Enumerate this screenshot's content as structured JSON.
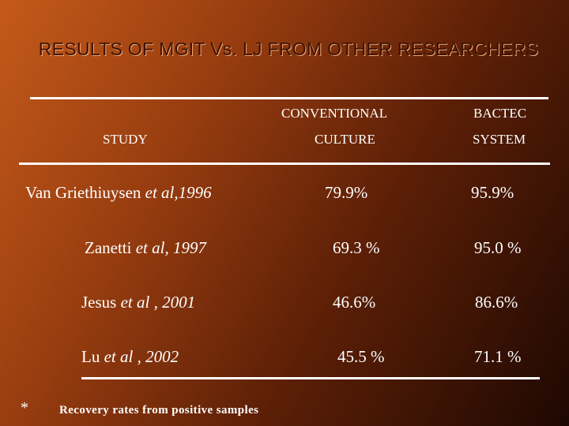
{
  "slide": {
    "title": "RESULTS OF MGIT Vs. LJ  FROM OTHER RESEARCHERS"
  },
  "table": {
    "headers": {
      "study": "STUDY",
      "conventional_line1": "CONVENTIONAL",
      "conventional_line2": "CULTURE",
      "bactec_line1": "BACTEC",
      "bactec_line2": "SYSTEM"
    },
    "rows": [
      {
        "author": "Van Griethiuysen ",
        "etal": "et al,",
        "year": "1996",
        "conventional": "79.9%",
        "bactec": "95.9%"
      },
      {
        "author": "Zanetti   ",
        "etal": "et al,",
        "year": " 1997",
        "conventional": "69.3 %",
        "bactec": "95.0 %"
      },
      {
        "author": "Jesus ",
        "etal": "et al ,",
        "year": " 2001",
        "conventional": "46.6%",
        "bactec": "86.6%"
      },
      {
        "author": "Lu   ",
        "etal": "et al ,",
        "year": " 2002",
        "conventional": "45.5 %",
        "bactec": "71.1 %"
      }
    ]
  },
  "footnote": {
    "marker": "*",
    "text": "Recovery rates from positive samples"
  }
}
